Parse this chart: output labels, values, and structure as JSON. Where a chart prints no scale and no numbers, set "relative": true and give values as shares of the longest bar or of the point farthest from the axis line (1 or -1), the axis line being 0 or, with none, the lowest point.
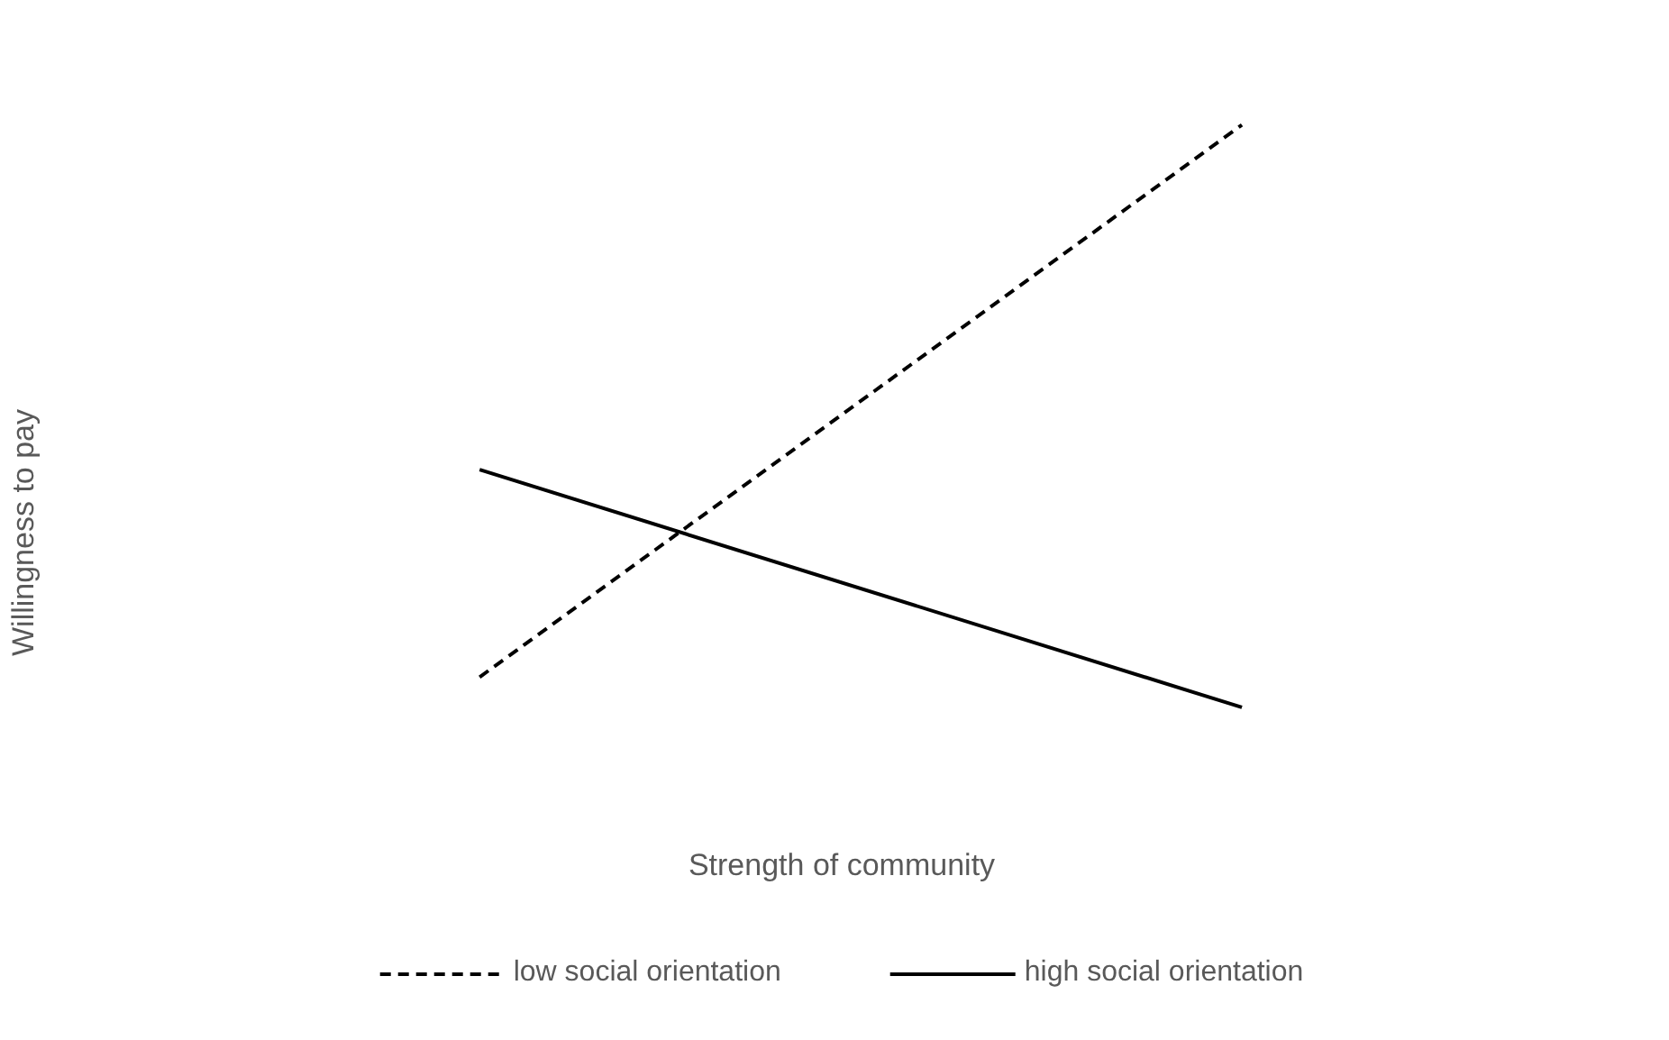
{
  "chart_data": {
    "type": "line",
    "relative": true,
    "xlabel": "Strength of community",
    "ylabel": "Willingness to pay",
    "categories": [
      null,
      null
    ],
    "series": [
      {
        "name": "low social orientation",
        "color": "#000000",
        "line_style": "dashed",
        "values": [
          0.052,
          1.0
        ]
      },
      {
        "name": "high social orientation",
        "color": "#000000",
        "line_style": "solid",
        "values": [
          0.408,
          0.0
        ]
      }
    ],
    "legend": "bottom",
    "grid": false,
    "marker": "none"
  }
}
